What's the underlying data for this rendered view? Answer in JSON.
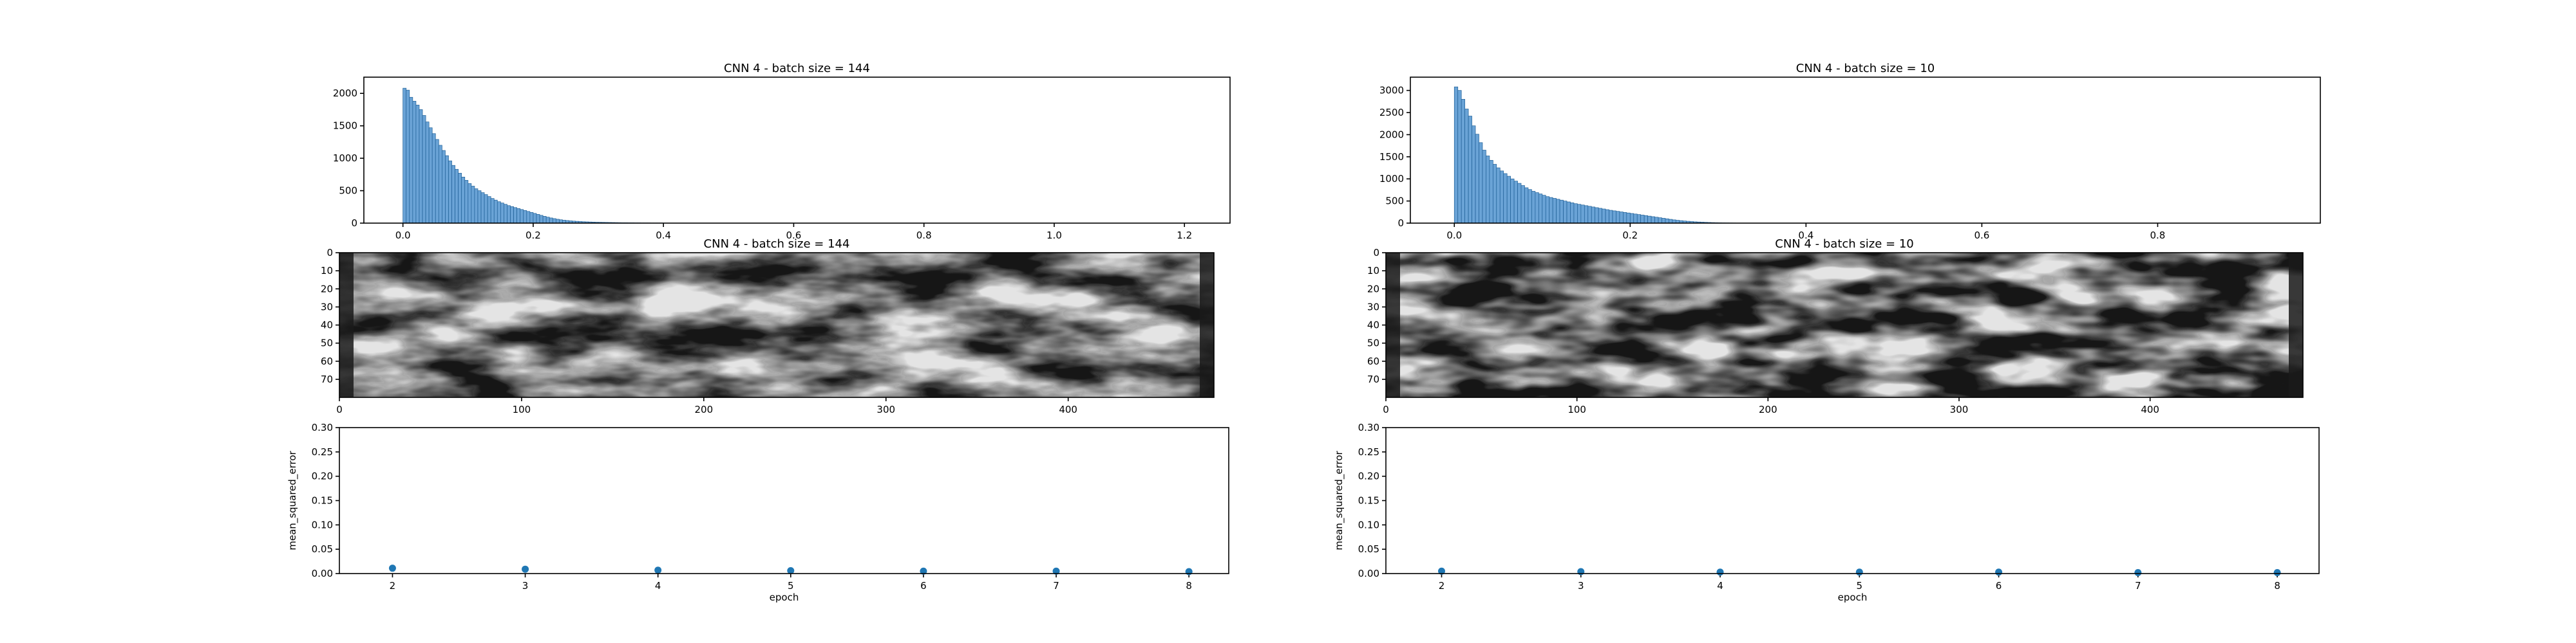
{
  "colors": {
    "bar_fill": "#6aa3d6",
    "bar_edge": "#1f5f96",
    "scatter": "#1f77b4",
    "image_cmap": "grayscale"
  },
  "chart_data": [
    {
      "id": "hist-left",
      "type": "bar",
      "title": "CNN 4 - batch size = 144",
      "xlim": [
        -0.06,
        1.27
      ],
      "ylim": [
        0,
        2250
      ],
      "xticks": [
        0.0,
        0.2,
        0.4,
        0.6,
        0.8,
        1.0,
        1.2
      ],
      "xtick_labels": [
        "0.0",
        "0.2",
        "0.4",
        "0.6",
        "0.8",
        "1.0",
        "1.2"
      ],
      "yticks": [
        0,
        500,
        1000,
        1500,
        2000
      ],
      "ytick_labels": [
        "0",
        "500",
        "1000",
        "1500",
        "2000"
      ],
      "bin_start": 0.0,
      "bin_width": 0.005,
      "values": [
        2080,
        2050,
        1940,
        1880,
        1820,
        1750,
        1660,
        1560,
        1470,
        1380,
        1290,
        1200,
        1120,
        1040,
        960,
        890,
        830,
        770,
        710,
        660,
        610,
        570,
        530,
        500,
        470,
        440,
        410,
        380,
        355,
        330,
        310,
        290,
        270,
        255,
        240,
        225,
        210,
        195,
        180,
        165,
        150,
        135,
        120,
        105,
        92,
        80,
        70,
        60,
        52,
        45,
        40,
        35,
        31,
        28,
        25,
        22,
        20,
        18,
        16,
        14,
        13,
        12,
        11,
        10,
        9,
        8,
        7,
        6,
        6,
        5,
        5,
        4,
        4,
        3,
        3,
        3,
        2,
        2,
        2,
        2
      ]
    },
    {
      "id": "hist-right",
      "type": "bar",
      "title": "CNN 4 - batch size = 10",
      "xlim": [
        -0.05,
        0.985
      ],
      "ylim": [
        0,
        3300
      ],
      "xticks": [
        0.0,
        0.2,
        0.4,
        0.6,
        0.8
      ],
      "xtick_labels": [
        "0.0",
        "0.2",
        "0.4",
        "0.6",
        "0.8"
      ],
      "yticks": [
        0,
        500,
        1000,
        1500,
        2000,
        2500,
        3000
      ],
      "ytick_labels": [
        "0",
        "500",
        "1000",
        "1500",
        "2000",
        "2500",
        "3000"
      ],
      "bin_start": 0.0,
      "bin_width": 0.004,
      "values": [
        3080,
        3000,
        2800,
        2580,
        2420,
        2200,
        2010,
        1820,
        1650,
        1520,
        1420,
        1330,
        1250,
        1180,
        1120,
        1060,
        1000,
        950,
        900,
        850,
        800,
        760,
        720,
        690,
        660,
        630,
        600,
        580,
        560,
        540,
        520,
        500,
        480,
        460,
        440,
        425,
        410,
        395,
        380,
        365,
        350,
        335,
        320,
        305,
        290,
        278,
        266,
        254,
        242,
        230,
        218,
        206,
        194,
        182,
        170,
        158,
        146,
        134,
        122,
        110,
        98,
        86,
        74,
        64,
        56,
        48,
        42,
        36,
        30,
        26,
        22,
        18,
        15,
        12,
        10,
        8,
        6,
        5,
        4,
        3
      ]
    },
    {
      "id": "image-left",
      "type": "heatmap",
      "title": "CNN 4 - batch size = 144",
      "xlim": [
        0,
        480
      ],
      "ylim": [
        0,
        80
      ],
      "xticks": [
        0,
        100,
        200,
        300,
        400
      ],
      "xtick_labels": [
        "0",
        "100",
        "200",
        "300",
        "400"
      ],
      "yticks": [
        0,
        10,
        20,
        30,
        40,
        50,
        60,
        70
      ],
      "ytick_labels": [
        "0",
        "10",
        "20",
        "30",
        "40",
        "50",
        "60",
        "70"
      ]
    },
    {
      "id": "image-right",
      "type": "heatmap",
      "title": "CNN 4 - batch size = 10",
      "xlim": [
        0,
        480
      ],
      "ylim": [
        0,
        80
      ],
      "xticks": [
        0,
        100,
        200,
        300,
        400
      ],
      "xtick_labels": [
        "0",
        "100",
        "200",
        "300",
        "400"
      ],
      "yticks": [
        0,
        10,
        20,
        30,
        40,
        50,
        60,
        70
      ],
      "ytick_labels": [
        "0",
        "10",
        "20",
        "30",
        "40",
        "50",
        "60",
        "70"
      ]
    },
    {
      "id": "scatter-left",
      "type": "scatter",
      "title": "",
      "xlabel": "epoch",
      "ylabel": "mean_squared_error",
      "xlim": [
        1.6,
        8.3
      ],
      "ylim": [
        0,
        0.3
      ],
      "xticks": [
        2,
        3,
        4,
        5,
        6,
        7,
        8
      ],
      "xtick_labels": [
        "2",
        "3",
        "4",
        "5",
        "6",
        "7",
        "8"
      ],
      "yticks": [
        0.0,
        0.05,
        0.1,
        0.15,
        0.2,
        0.25,
        0.3
      ],
      "ytick_labels": [
        "0.00",
        "0.05",
        "0.10",
        "0.15",
        "0.20",
        "0.25",
        "0.30"
      ],
      "x": [
        2,
        3,
        4,
        5,
        6,
        7,
        8
      ],
      "y": [
        0.011,
        0.009,
        0.007,
        0.006,
        0.005,
        0.005,
        0.004
      ]
    },
    {
      "id": "scatter-right",
      "type": "scatter",
      "title": "",
      "xlabel": "epoch",
      "ylabel": "mean_squared_error",
      "xlim": [
        1.6,
        8.3
      ],
      "ylim": [
        0,
        0.3
      ],
      "xticks": [
        2,
        3,
        4,
        5,
        6,
        7,
        8
      ],
      "xtick_labels": [
        "2",
        "3",
        "4",
        "5",
        "6",
        "7",
        "8"
      ],
      "yticks": [
        0.0,
        0.05,
        0.1,
        0.15,
        0.2,
        0.25,
        0.3
      ],
      "ytick_labels": [
        "0.00",
        "0.05",
        "0.10",
        "0.15",
        "0.20",
        "0.25",
        "0.30"
      ],
      "x": [
        2,
        3,
        4,
        5,
        6,
        7,
        8
      ],
      "y": [
        0.005,
        0.004,
        0.003,
        0.003,
        0.003,
        0.002,
        0.002
      ]
    }
  ]
}
